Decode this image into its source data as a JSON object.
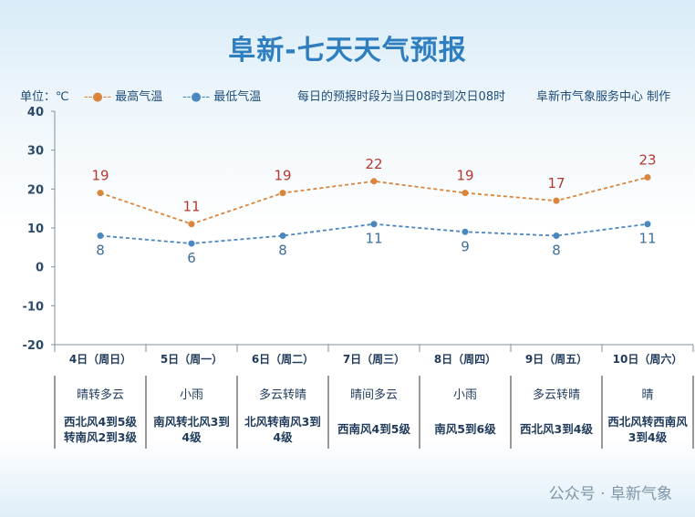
{
  "title": "阜新-七天天气预报",
  "unit_label": "单位：℃",
  "note": "每日的预报时段为当日08时到次日08时",
  "producer": "阜新市气象服务中心 制作",
  "watermark": "公众号 · 阜新气象",
  "chart_data": {
    "type": "line",
    "categories": [
      "4日（周日）",
      "5日（周一）",
      "6日（周二）",
      "7日（周三）",
      "8日（周四）",
      "9日（周五）",
      "10日（周六）"
    ],
    "series": [
      {
        "name": "最高气温",
        "values": [
          19,
          11,
          19,
          22,
          19,
          17,
          23
        ],
        "color": "#d9853b",
        "label_color": "#b03a2e"
      },
      {
        "name": "最低气温",
        "values": [
          8,
          6,
          8,
          11,
          9,
          8,
          11
        ],
        "color": "#4a86c0",
        "label_color": "#3d6f99"
      }
    ],
    "ylim": [
      -20,
      40
    ],
    "yticks": [
      40,
      30,
      20,
      10,
      0,
      -10,
      -20
    ],
    "grid": false,
    "legend": "top-left"
  },
  "weather": [
    "晴转多云",
    "小雨",
    "多云转晴",
    "晴间多云",
    "小雨",
    "多云转晴",
    "晴"
  ],
  "wind": [
    "西北风4到5级转南风2到3级",
    "南风转北风3到4级",
    "北风转南风3到4级",
    "西南风4到5级",
    "南风5到6级",
    "西北风3到4级",
    "西北风转西南风3到4级"
  ]
}
